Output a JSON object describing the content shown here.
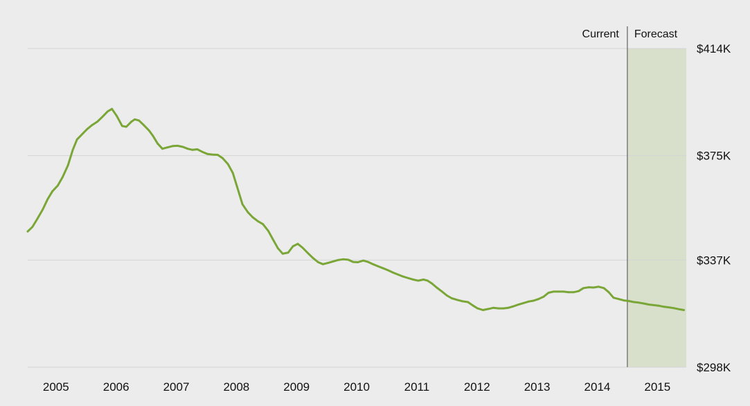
{
  "chart_data": {
    "type": "line",
    "title": "",
    "xlabel": "",
    "ylabel": "",
    "x_range": [
      2004.45,
      2015.4
    ],
    "ylim": [
      298,
      414
    ],
    "y_axis_position": "right",
    "grid": "horizontal",
    "forecast_start": 2014.42,
    "labels": {
      "current": "Current",
      "forecast": "Forecast"
    },
    "y_ticks": [
      {
        "value": 414,
        "label": "$414K"
      },
      {
        "value": 375,
        "label": "$375K"
      },
      {
        "value": 337,
        "label": "$337K"
      },
      {
        "value": 298,
        "label": "$298K"
      }
    ],
    "x_ticks": [
      {
        "value": 2004.92,
        "label": "2005"
      },
      {
        "value": 2005.92,
        "label": "2006"
      },
      {
        "value": 2006.92,
        "label": "2007"
      },
      {
        "value": 2007.92,
        "label": "2008"
      },
      {
        "value": 2008.92,
        "label": "2009"
      },
      {
        "value": 2009.92,
        "label": "2010"
      },
      {
        "value": 2010.92,
        "label": "2011"
      },
      {
        "value": 2011.92,
        "label": "2012"
      },
      {
        "value": 2012.92,
        "label": "2013"
      },
      {
        "value": 2013.92,
        "label": "2014"
      },
      {
        "value": 2014.92,
        "label": "2015"
      }
    ],
    "colors": {
      "line": "#7aa637",
      "forecast_fill": "#d8dfcb",
      "gridline": "#d4d4d4",
      "divider": "#6b6b6b",
      "background": "#ececec"
    },
    "series": [
      {
        "values": [
          [
            2004.45,
            347.4
          ],
          [
            2004.53,
            349.1
          ],
          [
            2004.61,
            352.0
          ],
          [
            2004.7,
            355.4
          ],
          [
            2004.78,
            359.1
          ],
          [
            2004.86,
            362.0
          ],
          [
            2004.95,
            364.1
          ],
          [
            2005.03,
            367.2
          ],
          [
            2005.12,
            371.5
          ],
          [
            2005.2,
            377.1
          ],
          [
            2005.27,
            380.9
          ],
          [
            2005.36,
            382.9
          ],
          [
            2005.44,
            384.7
          ],
          [
            2005.52,
            386.1
          ],
          [
            2005.61,
            387.4
          ],
          [
            2005.7,
            389.3
          ],
          [
            2005.78,
            391.1
          ],
          [
            2005.85,
            392.0
          ],
          [
            2005.93,
            389.5
          ],
          [
            2006.02,
            385.8
          ],
          [
            2006.09,
            385.5
          ],
          [
            2006.17,
            387.3
          ],
          [
            2006.23,
            388.2
          ],
          [
            2006.3,
            387.8
          ],
          [
            2006.38,
            386.1
          ],
          [
            2006.47,
            384.1
          ],
          [
            2006.53,
            382.3
          ],
          [
            2006.61,
            379.4
          ],
          [
            2006.69,
            377.5
          ],
          [
            2006.77,
            378.0
          ],
          [
            2006.86,
            378.5
          ],
          [
            2006.94,
            378.6
          ],
          [
            2007.03,
            378.2
          ],
          [
            2007.11,
            377.5
          ],
          [
            2007.19,
            377.1
          ],
          [
            2007.27,
            377.3
          ],
          [
            2007.35,
            376.4
          ],
          [
            2007.44,
            375.6
          ],
          [
            2007.52,
            375.4
          ],
          [
            2007.61,
            375.3
          ],
          [
            2007.69,
            374.1
          ],
          [
            2007.78,
            371.9
          ],
          [
            2007.86,
            368.7
          ],
          [
            2007.93,
            363.8
          ],
          [
            2008.02,
            357.3
          ],
          [
            2008.11,
            354.4
          ],
          [
            2008.19,
            352.6
          ],
          [
            2008.28,
            351.1
          ],
          [
            2008.36,
            350.1
          ],
          [
            2008.45,
            347.6
          ],
          [
            2008.52,
            344.8
          ],
          [
            2008.61,
            341.3
          ],
          [
            2008.69,
            339.3
          ],
          [
            2008.78,
            339.7
          ],
          [
            2008.86,
            342.0
          ],
          [
            2008.94,
            342.9
          ],
          [
            2009.02,
            341.5
          ],
          [
            2009.11,
            339.5
          ],
          [
            2009.19,
            337.8
          ],
          [
            2009.28,
            336.2
          ],
          [
            2009.36,
            335.5
          ],
          [
            2009.45,
            336.0
          ],
          [
            2009.53,
            336.5
          ],
          [
            2009.61,
            337.0
          ],
          [
            2009.7,
            337.3
          ],
          [
            2009.78,
            337.1
          ],
          [
            2009.86,
            336.3
          ],
          [
            2009.94,
            336.2
          ],
          [
            2010.03,
            336.8
          ],
          [
            2010.11,
            336.3
          ],
          [
            2010.19,
            335.5
          ],
          [
            2010.28,
            334.7
          ],
          [
            2010.36,
            334.0
          ],
          [
            2010.44,
            333.3
          ],
          [
            2010.53,
            332.4
          ],
          [
            2010.61,
            331.7
          ],
          [
            2010.69,
            331.0
          ],
          [
            2010.78,
            330.4
          ],
          [
            2010.86,
            329.9
          ],
          [
            2010.94,
            329.5
          ],
          [
            2011.03,
            329.9
          ],
          [
            2011.1,
            329.5
          ],
          [
            2011.17,
            328.5
          ],
          [
            2011.25,
            327.0
          ],
          [
            2011.34,
            325.5
          ],
          [
            2011.42,
            324.1
          ],
          [
            2011.5,
            323.1
          ],
          [
            2011.59,
            322.5
          ],
          [
            2011.68,
            322.0
          ],
          [
            2011.77,
            321.7
          ],
          [
            2011.85,
            320.5
          ],
          [
            2011.93,
            319.4
          ],
          [
            2012.02,
            318.8
          ],
          [
            2012.11,
            319.2
          ],
          [
            2012.19,
            319.6
          ],
          [
            2012.28,
            319.4
          ],
          [
            2012.36,
            319.4
          ],
          [
            2012.44,
            319.6
          ],
          [
            2012.53,
            320.2
          ],
          [
            2012.61,
            320.8
          ],
          [
            2012.69,
            321.3
          ],
          [
            2012.78,
            321.9
          ],
          [
            2012.86,
            322.2
          ],
          [
            2012.94,
            322.8
          ],
          [
            2013.03,
            323.7
          ],
          [
            2013.11,
            325.1
          ],
          [
            2013.19,
            325.5
          ],
          [
            2013.28,
            325.5
          ],
          [
            2013.36,
            325.5
          ],
          [
            2013.44,
            325.3
          ],
          [
            2013.53,
            325.3
          ],
          [
            2013.61,
            325.7
          ],
          [
            2013.69,
            326.8
          ],
          [
            2013.78,
            327.1
          ],
          [
            2013.86,
            327.0
          ],
          [
            2013.94,
            327.3
          ],
          [
            2014.03,
            326.8
          ],
          [
            2014.11,
            325.3
          ],
          [
            2014.19,
            323.3
          ],
          [
            2014.28,
            322.8
          ],
          [
            2014.36,
            322.3
          ],
          [
            2014.44,
            322.1
          ],
          [
            2014.53,
            321.7
          ],
          [
            2014.61,
            321.5
          ],
          [
            2014.69,
            321.2
          ],
          [
            2014.78,
            320.8
          ],
          [
            2014.86,
            320.6
          ],
          [
            2014.94,
            320.4
          ],
          [
            2015.03,
            320.0
          ],
          [
            2015.11,
            319.8
          ],
          [
            2015.19,
            319.5
          ],
          [
            2015.28,
            319.1
          ],
          [
            2015.36,
            318.8
          ]
        ]
      }
    ]
  }
}
